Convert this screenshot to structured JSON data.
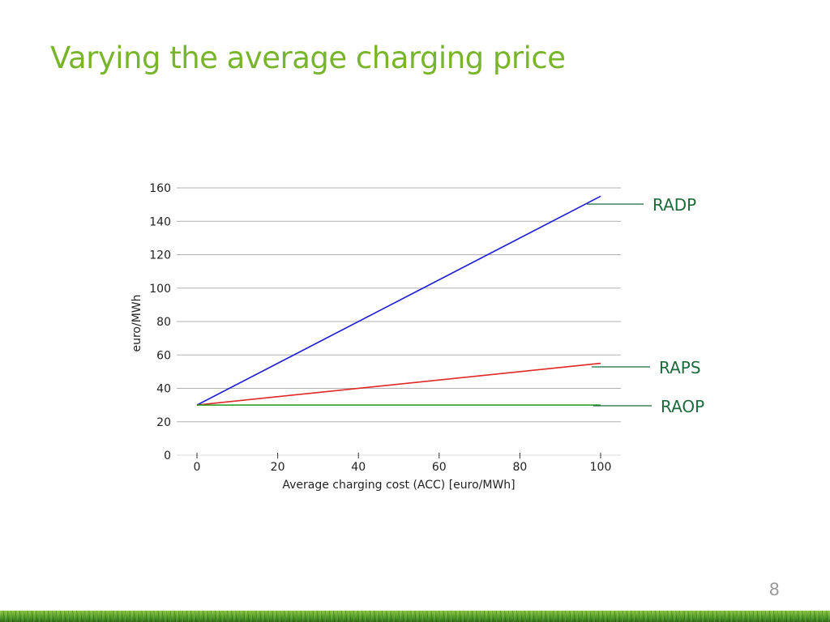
{
  "slide": {
    "title": "Varying the average charging price",
    "page_number": "8"
  },
  "colors": {
    "title": "#79b52c",
    "annotation": "#1e6b3a",
    "grid": "#b0b0b0",
    "axis_text": "#222222"
  },
  "chart_data": {
    "type": "line",
    "title": "",
    "xlabel": "Average charging cost (ACC) [euro/MWh]",
    "ylabel": "euro/MWh",
    "xlim": [
      0,
      100
    ],
    "ylim": [
      0,
      160
    ],
    "xticks": [
      0,
      20,
      40,
      60,
      80,
      100
    ],
    "yticks": [
      0,
      20,
      40,
      60,
      80,
      100,
      120,
      140,
      160
    ],
    "grid": "horizontal",
    "series": [
      {
        "name": "RADP",
        "color": "#1f1fd6",
        "x": [
          0,
          100
        ],
        "y": [
          30,
          155
        ]
      },
      {
        "name": "RAPS",
        "color": "#e02626",
        "x": [
          0,
          100
        ],
        "y": [
          30,
          55
        ]
      },
      {
        "name": "RAOP",
        "color": "#1a9a1a",
        "x": [
          0,
          100
        ],
        "y": [
          30,
          30
        ]
      }
    ]
  }
}
